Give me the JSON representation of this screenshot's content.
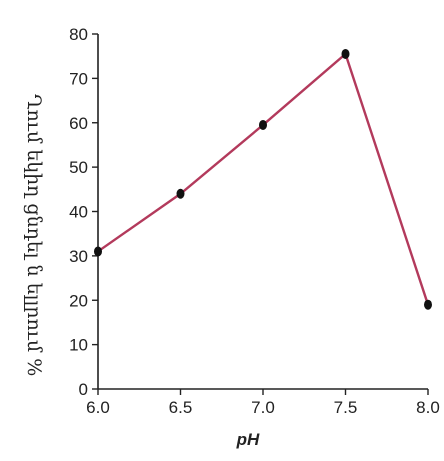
{
  "chart_data": {
    "type": "line",
    "title": "",
    "xlabel": "pH",
    "ylabel": "Ղում եկիղ ցնդել ն ելլրում %",
    "x": [
      6.0,
      6.5,
      7.0,
      7.5,
      8.0
    ],
    "x_tick_labels": [
      "6.0",
      "6.5",
      "7.0",
      "7.5",
      "8.0"
    ],
    "y_ticks": [
      0,
      10,
      20,
      30,
      40,
      50,
      60,
      70,
      80
    ],
    "xlim": [
      6.0,
      8.0
    ],
    "ylim": [
      0,
      80
    ],
    "grid": false,
    "series": [
      {
        "values": [
          31,
          44,
          59.5,
          75.5,
          19
        ]
      }
    ],
    "colors": {
      "line": "#b33a5c",
      "marker": "#111111",
      "axis": "#222222"
    }
  }
}
